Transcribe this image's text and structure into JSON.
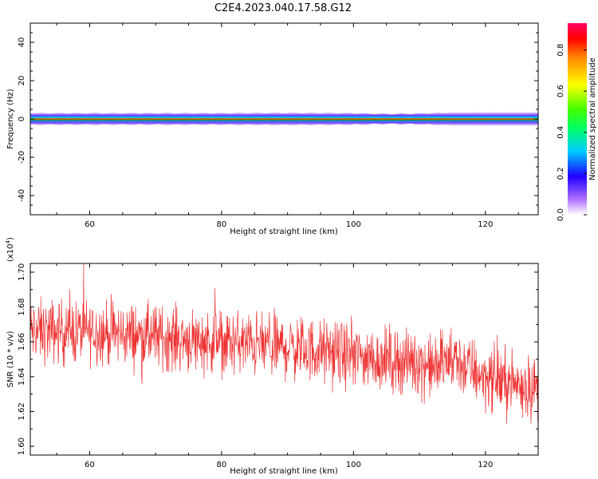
{
  "title": "C2E4.2023.040.17.58.G12",
  "chart_data": [
    {
      "type": "heatmap",
      "xlabel": "Height of straight line (km)",
      "ylabel": "Frequency (Hz)",
      "xlim": [
        51,
        128
      ],
      "ylim": [
        -50,
        50
      ],
      "xticks": [
        60,
        80,
        100,
        120
      ],
      "yticks": [
        -40,
        -20,
        0,
        20,
        40
      ],
      "colorbar": {
        "label": "Normalized spectral amplitude",
        "range": [
          0,
          0.93
        ],
        "ticks": [
          0.0,
          0.2,
          0.4,
          0.6,
          0.8
        ]
      },
      "band": {
        "description_values": "spectral power concentrated near 0 Hz across all heights",
        "x": [
          51,
          60,
          70,
          80,
          90,
          100,
          105,
          110,
          115,
          120,
          128
        ],
        "halfwidth_hz": [
          3,
          3,
          3,
          3,
          3.2,
          3,
          2.6,
          2.8,
          3.4,
          3.8,
          4
        ]
      }
    },
    {
      "type": "line",
      "xlabel": "Height of straight line (km)",
      "ylabel": "SNR (10 * v/v)",
      "yscale_note": "(x10^4)",
      "xlim": [
        51,
        128
      ],
      "ylim": [
        1.595,
        1.705
      ],
      "xticks": [
        60,
        80,
        100,
        120
      ],
      "yticks": [
        1.6,
        1.62,
        1.64,
        1.66,
        1.68,
        1.7
      ],
      "series": [
        {
          "color": "#ee3333",
          "trend_x": [
            51,
            60,
            70,
            80,
            90,
            100,
            110,
            112,
            115,
            120,
            128
          ],
          "trend_y": [
            1.666,
            1.666,
            1.663,
            1.66,
            1.657,
            1.652,
            1.648,
            1.645,
            1.65,
            1.64,
            1.633
          ],
          "noise_amplitude": 0.009
        }
      ]
    }
  ]
}
